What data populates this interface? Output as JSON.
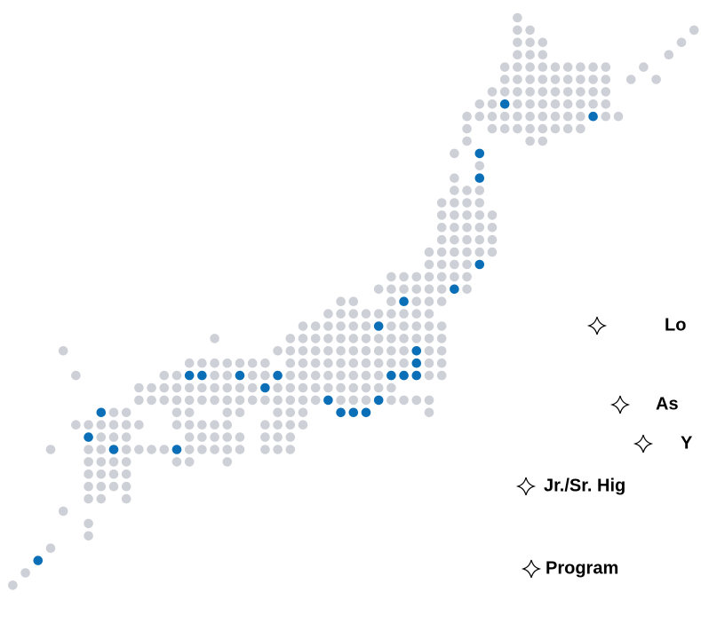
{
  "legend_items": [
    {
      "label": "Lo"
    },
    {
      "label": "As"
    },
    {
      "label": "Y"
    },
    {
      "label": "Jr./Sr. Hig"
    },
    {
      "label": "Program"
    }
  ]
}
